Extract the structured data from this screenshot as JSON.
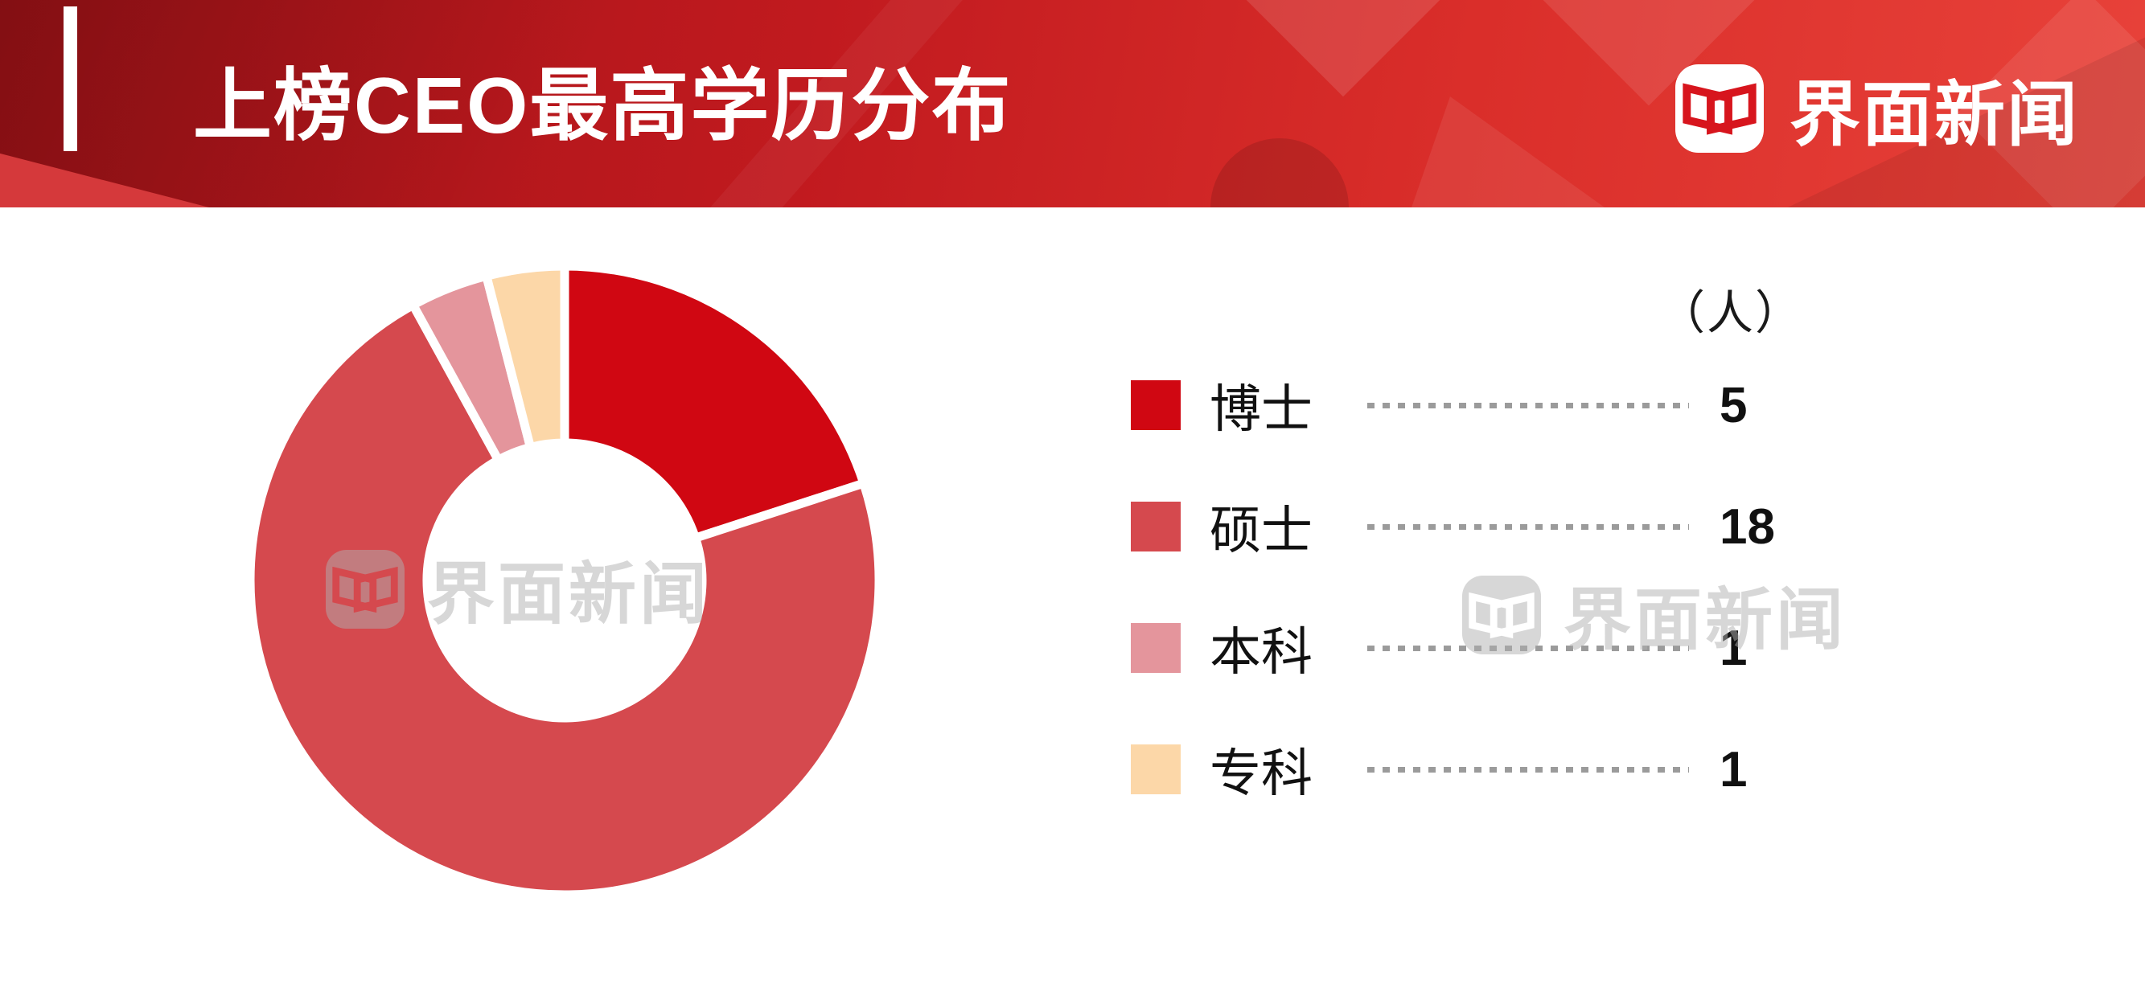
{
  "header": {
    "title": "上榜CEO最高学历分布",
    "brand_name": "界面新闻"
  },
  "chart_data": {
    "type": "pie",
    "subtype": "donut",
    "title": "上榜CEO最高学历分布",
    "unit_label": "（人）",
    "categories": [
      "博士",
      "硕士",
      "本科",
      "专科"
    ],
    "values": [
      5,
      18,
      1,
      1
    ],
    "total": 25,
    "colors": [
      "#d00712",
      "#d5494e",
      "#e4959c",
      "#fcd7a8"
    ],
    "start_angle_deg": 0,
    "direction": "clockwise",
    "inner_radius_ratio": 0.44,
    "legend_position": "right",
    "grid": false
  },
  "legend": {
    "items": [
      {
        "label": "博士",
        "value": "5",
        "color": "#d00712"
      },
      {
        "label": "硕士",
        "value": "18",
        "color": "#d5494e"
      },
      {
        "label": "本科",
        "value": "1",
        "color": "#e4959c"
      },
      {
        "label": "专科",
        "value": "1",
        "color": "#fcd7a8"
      }
    ]
  },
  "watermark": {
    "text": "界面新闻"
  },
  "colors": {
    "brand_red": "#d7151d",
    "banner_dark": "#a01217",
    "banner_bright": "#e8423a",
    "dotted_line": "#9b9b9b",
    "text_dark": "#111111"
  }
}
